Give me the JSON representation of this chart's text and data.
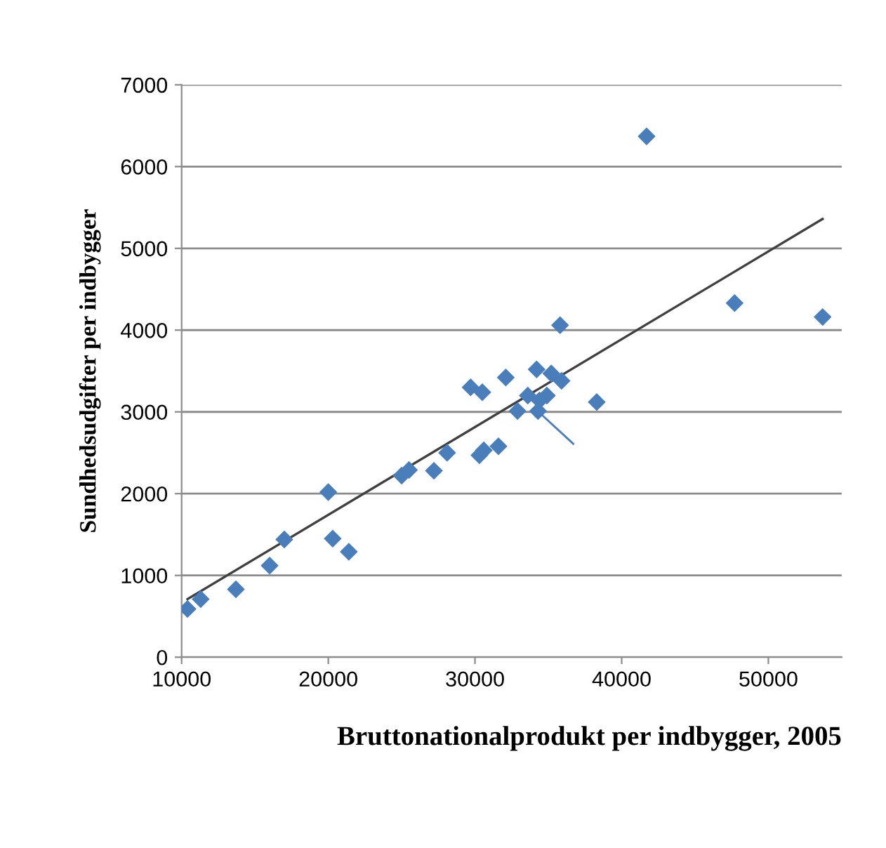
{
  "chart_data": {
    "type": "scatter",
    "xlabel": "Bruttonationalprodukt per indbygger, 2005",
    "ylabel": "Sundhedsudgifter per indbygger",
    "xlim": [
      10000,
      55000
    ],
    "ylim": [
      0,
      7000
    ],
    "xticks": [
      10000,
      20000,
      30000,
      40000,
      50000
    ],
    "yticks": [
      0,
      1000,
      2000,
      3000,
      4000,
      5000,
      6000,
      7000
    ],
    "grid": "y",
    "series": [
      {
        "color": "#4a7ebb",
        "marker": "diamond",
        "x": [
          10400,
          11300,
          13700,
          16000,
          17000,
          20000,
          20300,
          21400,
          25000,
          25500,
          27200,
          28100,
          29700,
          30500,
          30300,
          30600,
          31600,
          32100,
          32900,
          33600,
          34200,
          34300,
          34400,
          34900,
          35200,
          35900,
          35800,
          38300,
          41700,
          47700,
          53700
        ],
        "values": [
          590,
          710,
          830,
          1120,
          1440,
          2020,
          1450,
          1290,
          2220,
          2290,
          2280,
          2500,
          3300,
          3240,
          2470,
          2530,
          2580,
          3420,
          3010,
          3200,
          3520,
          3010,
          3140,
          3200,
          3470,
          3380,
          4060,
          3120,
          6370,
          4330,
          4160
        ]
      },
      {
        "type": "line",
        "color": "#404040",
        "marker": "none",
        "line_style": "solid",
        "x": [
          10400,
          53700
        ],
        "values": [
          710,
          5360
        ]
      }
    ]
  }
}
